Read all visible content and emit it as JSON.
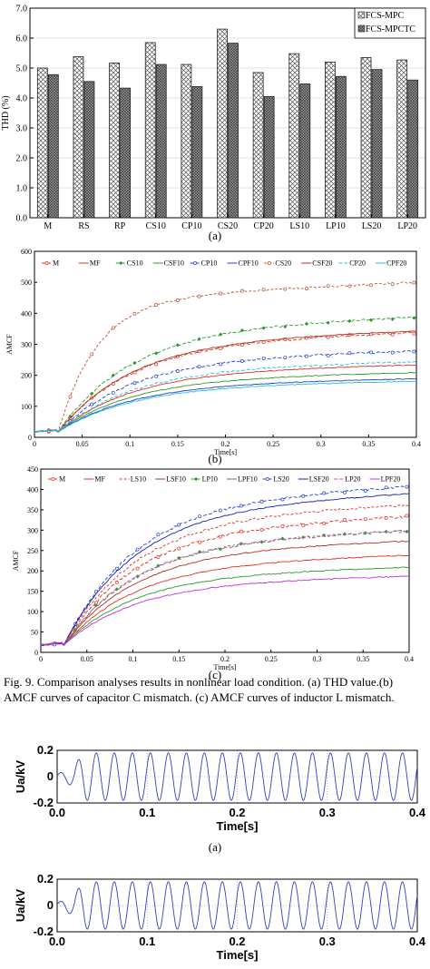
{
  "caption": "Fig. 9.  Comparison analyses results in nonlinear load condition. (a) THD value.(b) AMCF curves of capacitor C mismatch. (c) AMCF curves of inductor L mismatch.",
  "chart_data": [
    {
      "id": "thd",
      "type": "bar",
      "panel_label": "(a)",
      "ylabel": "THD (%)",
      "ylim": [
        0,
        7
      ],
      "yticks": [
        "0.0",
        "1.0",
        "2.0",
        "3.0",
        "4.0",
        "5.0",
        "6.0",
        "7.0"
      ],
      "categories": [
        "M",
        "RS",
        "RP",
        "CS10",
        "CP10",
        "CS20",
        "CP20",
        "LS10",
        "LP10",
        "LS20",
        "LP20"
      ],
      "series": [
        {
          "name": "FCS-MPC",
          "values": [
            5.0,
            5.38,
            5.17,
            5.85,
            5.12,
            6.3,
            4.85,
            5.48,
            5.2,
            5.35,
            5.27
          ]
        },
        {
          "name": "FCS-MPCTC",
          "values": [
            4.78,
            4.55,
            4.33,
            5.12,
            4.38,
            5.83,
            4.05,
            4.47,
            4.72,
            4.95,
            4.6
          ]
        }
      ],
      "legend": "top-right"
    },
    {
      "id": "amcf_c",
      "type": "line",
      "panel_label": "(b)",
      "xlabel": "Time[s]",
      "ylabel": "AMCF",
      "xlim": [
        0,
        0.4
      ],
      "ylim": [
        0,
        600
      ],
      "xticks": [
        "0",
        "0.05",
        "0.1",
        "0.15",
        "0.2",
        "0.25",
        "0.3",
        "0.35",
        "0.4"
      ],
      "yticks": [
        "0",
        "100",
        "200",
        "300",
        "400",
        "500",
        "600"
      ],
      "legend": "top",
      "series": [
        {
          "name": "M",
          "color": "#e03020",
          "dash": "4,2",
          "marker": "o",
          "final": 340
        },
        {
          "name": "MF",
          "color": "#e03020",
          "dash": "",
          "marker": "",
          "final": 235
        },
        {
          "name": "CS10",
          "color": "#2a9a2a",
          "dash": "4,2",
          "marker": "d",
          "final": 390
        },
        {
          "name": "CSF10",
          "color": "#2a9a2a",
          "dash": "",
          "marker": "",
          "final": 210
        },
        {
          "name": "CP10",
          "color": "#2040d0",
          "dash": "4,2",
          "marker": "o",
          "final": 280
        },
        {
          "name": "CPF10",
          "color": "#2040d0",
          "dash": "",
          "marker": "",
          "final": 190
        },
        {
          "name": "CS20",
          "color": "#c0502a",
          "dash": "3,2",
          "marker": "o",
          "final": 500
        },
        {
          "name": "CSF20",
          "color": "#b03020",
          "dash": "",
          "marker": "",
          "final": 345
        },
        {
          "name": "CP20",
          "color": "#20c0e0",
          "dash": "4,2",
          "marker": "",
          "final": 245
        },
        {
          "name": "CPF20",
          "color": "#20c0e0",
          "dash": "",
          "marker": "",
          "final": 182
        }
      ]
    },
    {
      "id": "amcf_l",
      "type": "line",
      "panel_label": "(c)",
      "xlabel": "Time[s]",
      "ylabel": "AMCF",
      "xlim": [
        0,
        0.4
      ],
      "ylim": [
        0,
        450
      ],
      "xticks": [
        "0",
        "0.05",
        "0.1",
        "0.15",
        "0.2",
        "0.25",
        "0.3",
        "0.35",
        "0.4"
      ],
      "yticks": [
        "0",
        "50",
        "100",
        "150",
        "200",
        "250",
        "300",
        "350",
        "400",
        "450"
      ],
      "legend": "top",
      "series": [
        {
          "name": "M",
          "color": "#e03020",
          "dash": "4,2",
          "marker": "o",
          "final": 335
        },
        {
          "name": "MF",
          "color": "#e03020",
          "dash": "",
          "marker": "",
          "final": 240
        },
        {
          "name": "LS10",
          "color": "#e03020",
          "dash": "3,2",
          "marker": "",
          "final": 365
        },
        {
          "name": "LSF10",
          "color": "#b03020",
          "dash": "",
          "marker": "",
          "final": 275
        },
        {
          "name": "LP10",
          "color": "#2a9a2a",
          "dash": "4,2",
          "marker": "d",
          "final": 300
        },
        {
          "name": "LPF10",
          "color": "#2a9a2a",
          "dash": "",
          "marker": "",
          "final": 210
        },
        {
          "name": "LS20",
          "color": "#2040d0",
          "dash": "4,2",
          "marker": "o",
          "final": 410
        },
        {
          "name": "LSF20",
          "color": "#1020b0",
          "dash": "",
          "marker": "",
          "final": 392
        },
        {
          "name": "LP20",
          "color": "#e040c0",
          "dash": "4,2",
          "marker": "",
          "final": 300
        },
        {
          "name": "LPF20",
          "color": "#c030e0",
          "dash": "",
          "marker": "",
          "final": 188
        }
      ]
    },
    {
      "id": "ua1",
      "type": "line",
      "panel_label": "(a)",
      "xlabel": "Time[s]",
      "ylabel": "Ua/kV",
      "xlim": [
        0,
        0.4
      ],
      "ylim": [
        -0.2,
        0.2
      ],
      "xticks": [
        "0.0",
        "0.1",
        "0.2",
        "0.3",
        "0.4"
      ],
      "yticks": [
        "-0.2",
        "0",
        "0.2"
      ],
      "series": [
        {
          "name": "Ua",
          "color": "#3040c0",
          "amplitude": 0.18,
          "frequency_hz": 50
        }
      ]
    },
    {
      "id": "ua2",
      "type": "line",
      "xlabel": "Time[s]",
      "ylabel": "Ua/kV",
      "xlim": [
        0,
        0.4
      ],
      "ylim": [
        -0.2,
        0.2
      ],
      "xticks": [
        "0.0",
        "0.1",
        "0.2",
        "0.3",
        "0.4"
      ],
      "yticks": [
        "-0.2",
        "0",
        "0.2"
      ],
      "series": [
        {
          "name": "Ua",
          "color": "#3040c0",
          "amplitude": 0.18,
          "frequency_hz": 50
        }
      ]
    }
  ]
}
